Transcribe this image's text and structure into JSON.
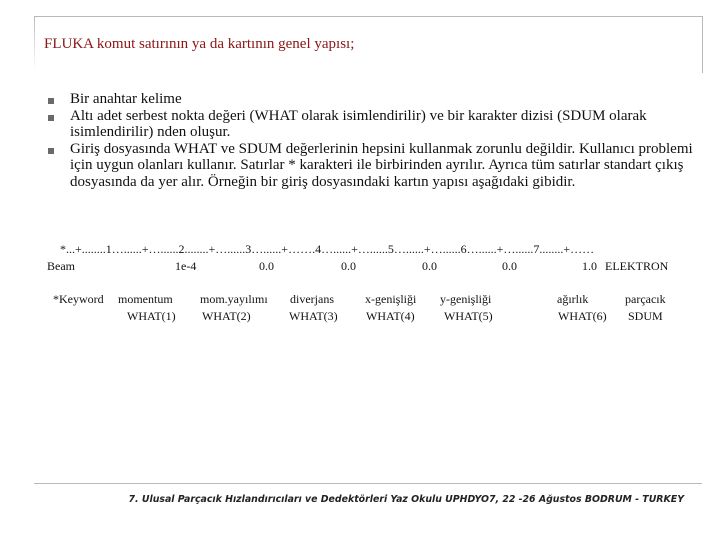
{
  "slide": {
    "title": "FLUKA komut satırının ya da kartının genel yapısı;"
  },
  "bullets": [
    {
      "text": "Bir anahtar kelime"
    },
    {
      "text": "Altı adet serbest nokta değeri (WHAT olarak isimlendirilir) ve bir karakter dizisi (SDUM olarak isimlendirilir) nden oluşur."
    },
    {
      "text": "Giriş dosyasında WHAT ve SDUM değerlerinin hepsini kullanmak zorunlu değildir. Kullanıcı problemi için uygun olanları kullanır. Satırlar * karakteri ile birbirinden ayrılır. Ayrıca tüm satırlar standart çıkış dosyasında da yer alır. Örneğin bir giriş dosyasındaki kartın yapısı aşağıdaki gibidir."
    }
  ],
  "card": {
    "ruler": "*...+........1…......+…......2........+…......3…......+…….4…......+…......5…......+…......6…......+…......7........+……",
    "example": {
      "keyword": "Beam",
      "values": [
        "1e-4",
        "0.0",
        "0.0",
        "0.0",
        "0.0",
        "1.0"
      ],
      "sdum": "ELEKTRON"
    },
    "legend": [
      {
        "top": "*Keyword",
        "bottom": ""
      },
      {
        "top": "momentum",
        "bottom": "WHAT(1)"
      },
      {
        "top": "mom.yayılımı",
        "bottom": "WHAT(2)"
      },
      {
        "top": "diverjans",
        "bottom": "WHAT(3)"
      },
      {
        "top": "x-genişliği",
        "bottom": "WHAT(4)"
      },
      {
        "top": "y-genişliği",
        "bottom": "WHAT(5)"
      },
      {
        "top": "ağırlık",
        "bottom": "WHAT(6)"
      },
      {
        "top": "parçacık",
        "bottom": "SDUM"
      }
    ]
  },
  "footer": {
    "text": "7. Ulusal Parçacık Hızlandırıcıları ve Dedektörleri Yaz Okulu UPHDYO7, 22 -26 Ağustos BODRUM - TURKEY"
  }
}
